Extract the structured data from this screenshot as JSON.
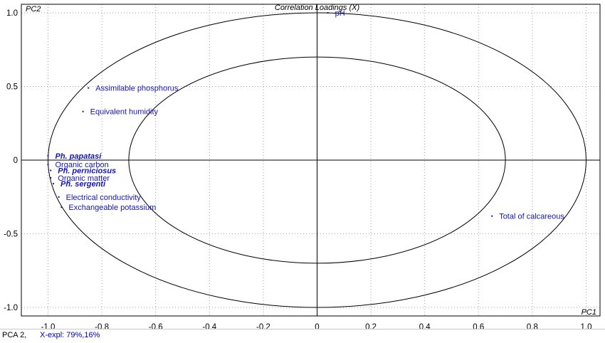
{
  "chart_data": {
    "type": "scatter",
    "title": "Correlation Loadings (X)",
    "xlabel": "PC1",
    "ylabel": "PC2",
    "xlim": [
      -1.05,
      1.05
    ],
    "ylim": [
      -1.05,
      1.05
    ],
    "x_ticks": [
      "-1.0",
      "-0.8",
      "-0.6",
      "-0.4",
      "-0.2",
      "0",
      "0.2",
      "0.4",
      "0.6",
      "0.8",
      "1.0"
    ],
    "y_ticks": [
      "1.0",
      "0.5",
      "0",
      "-0.5",
      "-1.0"
    ],
    "grid": true,
    "ellipses": [
      {
        "name": "outer",
        "radius": 1.0
      },
      {
        "name": "inner",
        "radius": 0.7
      }
    ],
    "points": [
      {
        "label": "pH",
        "x": 0.04,
        "y": 1.0,
        "italic": false
      },
      {
        "label": "Assimilable phosphorus",
        "x": -0.85,
        "y": 0.49,
        "italic": false
      },
      {
        "label": "Equivalent humidity",
        "x": -0.87,
        "y": 0.33,
        "italic": false
      },
      {
        "label": "Ph. papatasi",
        "x": -1.0,
        "y": 0.03,
        "italic": true
      },
      {
        "label": "Organic carbon",
        "x": -1.0,
        "y": -0.03,
        "italic": false
      },
      {
        "label": "Ph. perniciosus",
        "x": -0.99,
        "y": -0.07,
        "italic": true
      },
      {
        "label": "Organic matter",
        "x": -0.99,
        "y": -0.12,
        "italic": false
      },
      {
        "label": "Ph. sergenti",
        "x": -0.98,
        "y": -0.16,
        "italic": true
      },
      {
        "label": "Electrical conductivity",
        "x": -0.96,
        "y": -0.25,
        "italic": false
      },
      {
        "label": "Exchangeable potassium",
        "x": -0.95,
        "y": -0.32,
        "italic": false
      },
      {
        "label": "Total of calcareous",
        "x": 0.65,
        "y": -0.38,
        "italic": false
      }
    ],
    "colors": {
      "label": "#1414b4",
      "axis": "#000000",
      "grid": "#a0a0a0",
      "ellipse": "#000000"
    }
  },
  "status": {
    "model": "PCA 2,",
    "explained": "X-expl: 79%,16%"
  }
}
